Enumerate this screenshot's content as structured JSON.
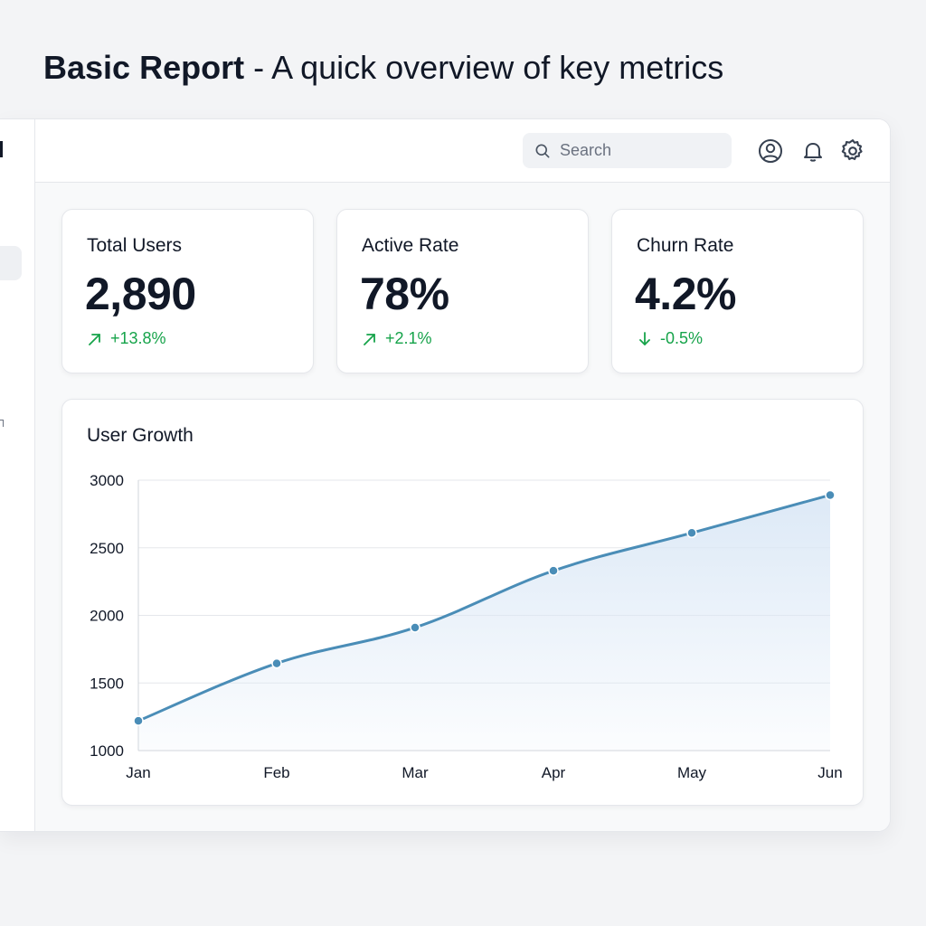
{
  "page": {
    "heading_bold": "Basic Report",
    "heading_rest": " - A quick overview of key metrics"
  },
  "topbar": {
    "search_placeholder": "Search",
    "icons": [
      "search-icon",
      "user-icon",
      "bell-icon",
      "gear-icon"
    ]
  },
  "kpis": [
    {
      "label": "Total Users",
      "value": "2,890",
      "delta": "+13.8%",
      "direction": "up"
    },
    {
      "label": "Active Rate",
      "value": "78%",
      "delta": "+2.1%",
      "direction": "up"
    },
    {
      "label": "Churn Rate",
      "value": "4.2%",
      "delta": "-0.5%",
      "direction": "down"
    }
  ],
  "colors": {
    "accent": "#4a8db7",
    "positive": "#16a34a",
    "fill": "#dbe8f6"
  },
  "chart_data": {
    "type": "area",
    "title": "User Growth",
    "categories": [
      "Jan",
      "Feb",
      "Mar",
      "Apr",
      "May",
      "Jun"
    ],
    "series": [
      {
        "values": [
          1220,
          1645,
          1910,
          2330,
          2610,
          2890
        ]
      }
    ],
    "ylim": [
      1000,
      3000
    ],
    "yticks": [
      1000,
      1500,
      2000,
      2500,
      3000
    ],
    "grid": true,
    "legend": "none"
  }
}
